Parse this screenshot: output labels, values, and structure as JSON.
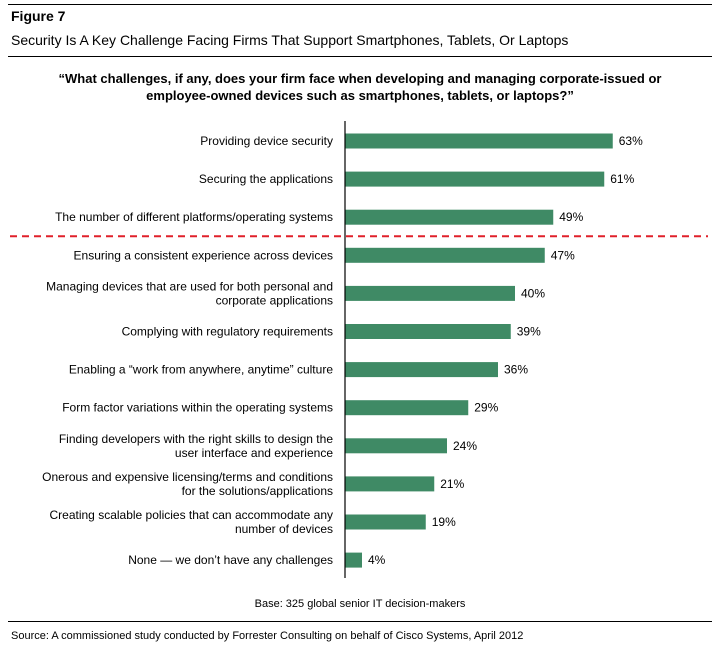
{
  "figure": {
    "number": "Figure 7",
    "title": "Security Is A Key Challenge Facing Firms That Support Smartphones, Tablets, Or Laptops",
    "question": "“What challenges, if any, does your firm face when developing and managing corporate-issued or employee-owned devices such as smartphones, tablets, or laptops?”",
    "base": "Base: 325 global senior IT decision-makers",
    "source": "Source: A commissioned study conducted by Forrester Consulting on behalf of Cisco Systems, April 2012"
  },
  "colors": {
    "bar": "#3f8a65",
    "divider": "#e0202a",
    "axis": "#000000"
  },
  "chart_data": {
    "type": "bar",
    "orientation": "horizontal",
    "title": "",
    "xlabel": "",
    "ylabel": "",
    "xlim": [
      0,
      100
    ],
    "grid": false,
    "legend": "none",
    "value_suffix": "%",
    "divider_after_index": 2,
    "categories": [
      [
        "Providing device security"
      ],
      [
        "Securing the applications"
      ],
      [
        "The number of different platforms/operating systems"
      ],
      [
        "Ensuring a consistent experience across devices"
      ],
      [
        "Managing devices that are used for both personal and",
        "corporate applications"
      ],
      [
        "Complying with regulatory requirements"
      ],
      [
        "Enabling a “work from anywhere, anytime” culture"
      ],
      [
        "Form factor variations within the operating systems"
      ],
      [
        "Finding developers with the right skills to design the",
        "user interface and experience"
      ],
      [
        "Onerous and expensive licensing/terms and conditions",
        "for the solutions/applications"
      ],
      [
        "Creating scalable policies that can accommodate any",
        "number of devices"
      ],
      [
        "None — we don’t have any challenges"
      ]
    ],
    "values": [
      63,
      61,
      49,
      47,
      40,
      39,
      36,
      29,
      24,
      21,
      19,
      4
    ]
  }
}
